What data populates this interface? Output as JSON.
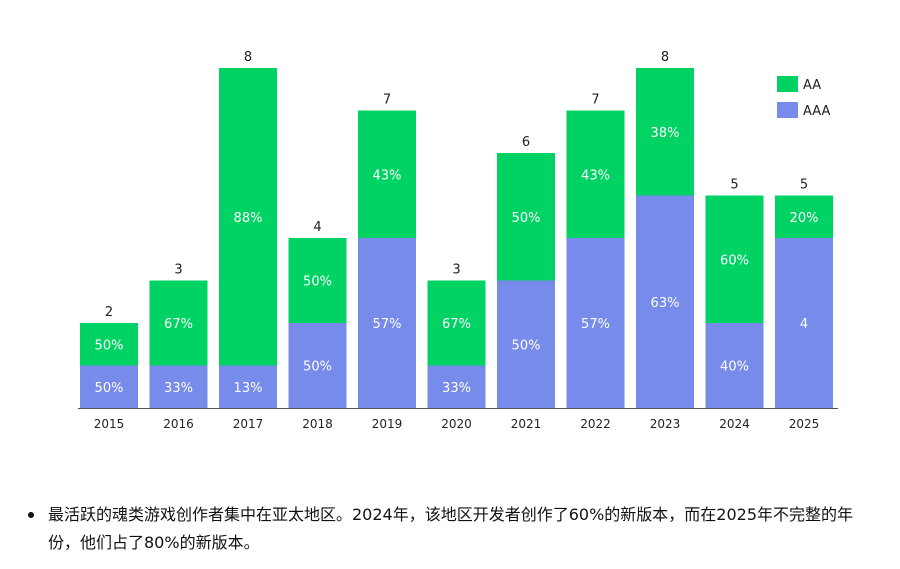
{
  "chart_data": {
    "type": "bar",
    "stacked": true,
    "categories": [
      "2015",
      "2016",
      "2017",
      "2018",
      "2019",
      "2020",
      "2021",
      "2022",
      "2023",
      "2024",
      "2025"
    ],
    "series": [
      {
        "name": "AAA",
        "color": "#768bea",
        "values": [
          1,
          1,
          1,
          2,
          4,
          1,
          3,
          4,
          5,
          2,
          4
        ],
        "labels": [
          "50%",
          "33%",
          "13%",
          "50%",
          "57%",
          "33%",
          "50%",
          "57%",
          "63%",
          "40%",
          "4"
        ]
      },
      {
        "name": "AA",
        "color": "#00d364",
        "values": [
          1,
          2,
          7,
          2,
          3,
          2,
          3,
          3,
          3,
          3,
          1
        ],
        "labels": [
          "50%",
          "67%",
          "88%",
          "50%",
          "43%",
          "67%",
          "50%",
          "43%",
          "38%",
          "60%",
          "20%"
        ]
      }
    ],
    "totals": [
      "2",
      "3",
      "8",
      "4",
      "7",
      "3",
      "6",
      "7",
      "8",
      "5",
      "5"
    ],
    "legend": [
      "AA",
      "AAA"
    ],
    "legend_position": "top-right",
    "grid": false,
    "ylim": [
      0,
      8
    ]
  },
  "note": "最活跃的魂类游戏创作者集中在亚太地区。2024年，该地区开发者创作了60%的新版本，而在2025年不完整的年份，他们占了80%的新版本。"
}
